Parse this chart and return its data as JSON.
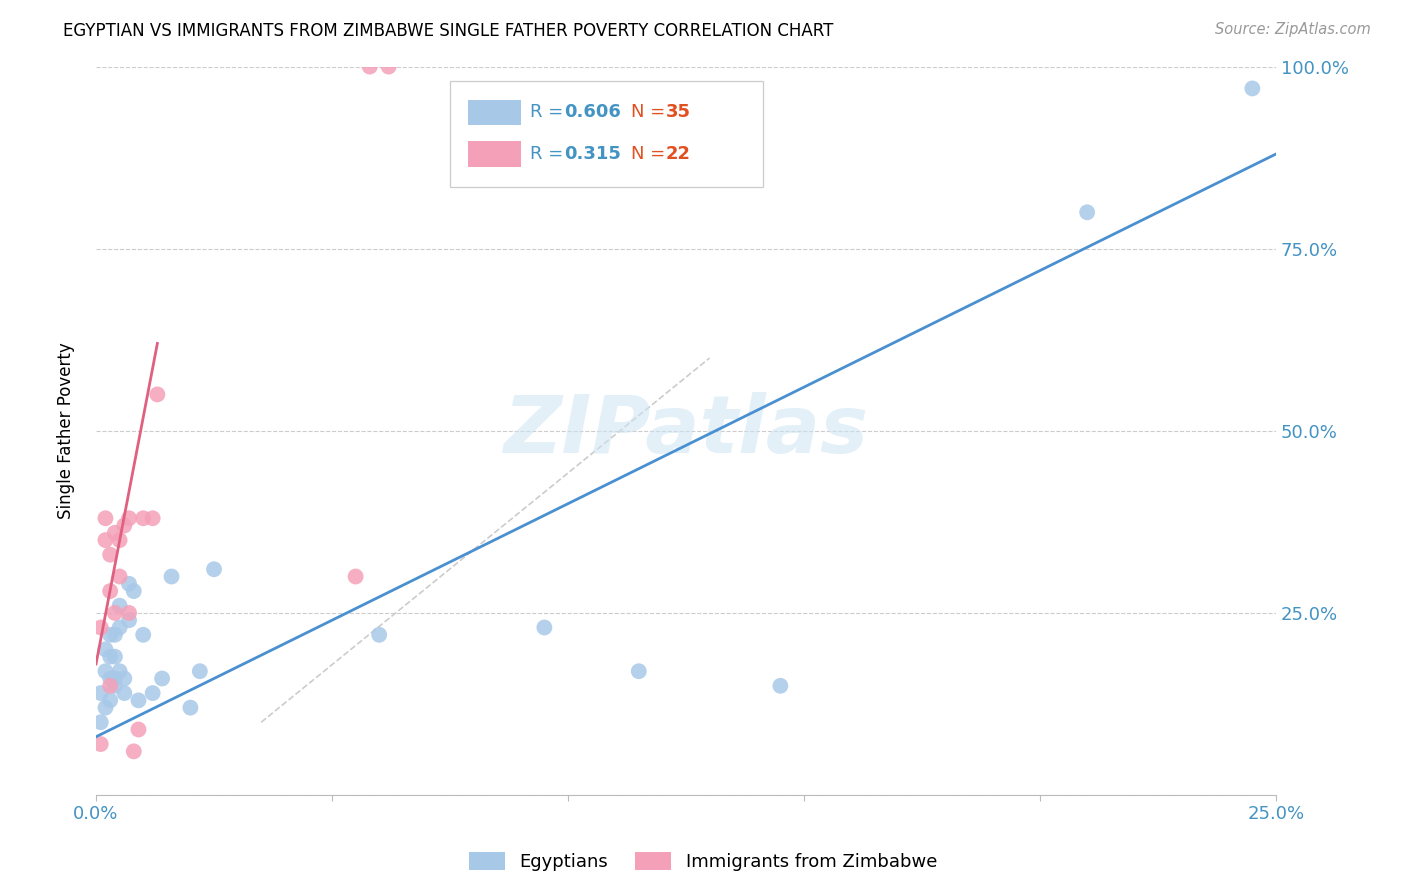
{
  "title": "EGYPTIAN VS IMMIGRANTS FROM ZIMBABWE SINGLE FATHER POVERTY CORRELATION CHART",
  "source": "Source: ZipAtlas.com",
  "ylabel": "Single Father Poverty",
  "xlim": [
    0.0,
    0.25
  ],
  "ylim": [
    0.0,
    1.0
  ],
  "xtick_vals": [
    0.0,
    0.05,
    0.1,
    0.15,
    0.2,
    0.25
  ],
  "xtick_labels": [
    "0.0%",
    "",
    "",
    "",
    "",
    "25.0%"
  ],
  "ytick_vals": [
    0.0,
    0.25,
    0.5,
    0.75,
    1.0
  ],
  "ytick_labels": [
    "",
    "25.0%",
    "50.0%",
    "75.0%",
    "100.0%"
  ],
  "R_blue": 0.606,
  "N_blue": 35,
  "R_pink": 0.315,
  "N_pink": 22,
  "blue_scatter_color": "#a8c8e8",
  "pink_scatter_color": "#f4a0b8",
  "blue_line_color": "#4a90d0",
  "pink_line_color": "#e06080",
  "diag_line_color": "#cccccc",
  "watermark": "ZIPatlas",
  "blue_x": [
    0.001,
    0.001,
    0.002,
    0.002,
    0.002,
    0.003,
    0.003,
    0.003,
    0.003,
    0.004,
    0.004,
    0.004,
    0.004,
    0.005,
    0.005,
    0.005,
    0.006,
    0.006,
    0.007,
    0.007,
    0.008,
    0.009,
    0.01,
    0.012,
    0.014,
    0.016,
    0.02,
    0.022,
    0.025,
    0.06,
    0.095,
    0.115,
    0.145,
    0.21,
    0.245
  ],
  "blue_y": [
    0.1,
    0.14,
    0.12,
    0.17,
    0.2,
    0.13,
    0.16,
    0.19,
    0.22,
    0.16,
    0.19,
    0.22,
    0.15,
    0.17,
    0.23,
    0.26,
    0.14,
    0.16,
    0.24,
    0.29,
    0.28,
    0.13,
    0.22,
    0.14,
    0.16,
    0.3,
    0.12,
    0.17,
    0.31,
    0.22,
    0.23,
    0.17,
    0.15,
    0.8,
    0.97
  ],
  "pink_x": [
    0.001,
    0.001,
    0.002,
    0.002,
    0.003,
    0.003,
    0.003,
    0.004,
    0.004,
    0.005,
    0.005,
    0.006,
    0.007,
    0.007,
    0.008,
    0.009,
    0.01,
    0.012,
    0.013,
    0.055,
    0.058,
    0.062
  ],
  "pink_y": [
    0.23,
    0.07,
    0.35,
    0.38,
    0.15,
    0.28,
    0.33,
    0.25,
    0.36,
    0.3,
    0.35,
    0.37,
    0.38,
    0.25,
    0.06,
    0.09,
    0.38,
    0.38,
    0.55,
    0.3,
    1.0,
    1.0
  ],
  "blue_line_x": [
    0.0,
    0.25
  ],
  "blue_line_y": [
    0.08,
    0.88
  ],
  "pink_line_x": [
    0.0,
    0.013
  ],
  "pink_line_y": [
    0.18,
    0.62
  ],
  "diag_line_x": [
    0.035,
    0.13
  ],
  "diag_line_y": [
    0.1,
    0.6
  ]
}
